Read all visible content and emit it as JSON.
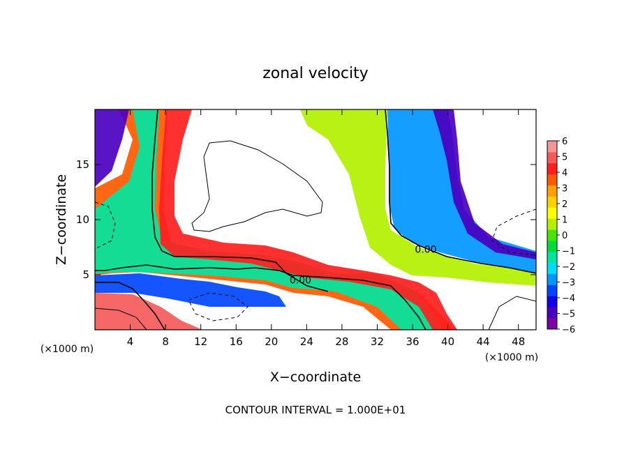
{
  "chart_data": {
    "type": "heatmap",
    "title": "zonal velocity",
    "xlabel": "X−coordinate",
    "ylabel": "Z−coordinate",
    "x_unit_left": "(×1000 m)",
    "x_unit_right": "(×1000 m)",
    "footer": "CONTOUR INTERVAL = 1.000E+01",
    "xlim": [
      0,
      50
    ],
    "ylim": [
      0,
      20
    ],
    "x_ticks": [
      4,
      8,
      12,
      16,
      20,
      24,
      28,
      32,
      36,
      40,
      44,
      48
    ],
    "x_tick_labels": [
      "4",
      "8",
      "12",
      "16",
      "20",
      "24",
      "28",
      "32",
      "36",
      "40",
      "44",
      "48"
    ],
    "y_ticks": [
      5,
      10,
      15
    ],
    "y_tick_labels": [
      "5",
      "10",
      "15"
    ],
    "contour_labels": [
      {
        "text": "0.00",
        "x": 23.3,
        "y": 4.2
      },
      {
        "text": "0.00",
        "x": 37.5,
        "y": 7.0
      }
    ],
    "colorbar": {
      "min": -6,
      "max": 6,
      "labels": [
        "6",
        "5",
        "4",
        "3",
        "2",
        "1",
        "0",
        "−1",
        "−2",
        "−3",
        "−4",
        "−5",
        "−6"
      ],
      "colors": [
        "#7f00a0",
        "#4b00c0",
        "#1400e6",
        "#0046ff",
        "#0096ff",
        "#00dcff",
        "#00e6a0",
        "#00dc3c",
        "#46e600",
        "#b4f000",
        "#ffff00",
        "#ffd200",
        "#ffa000",
        "#ff5a00",
        "#ff1e1e",
        "#f55a5a",
        "#f59696"
      ]
    }
  }
}
